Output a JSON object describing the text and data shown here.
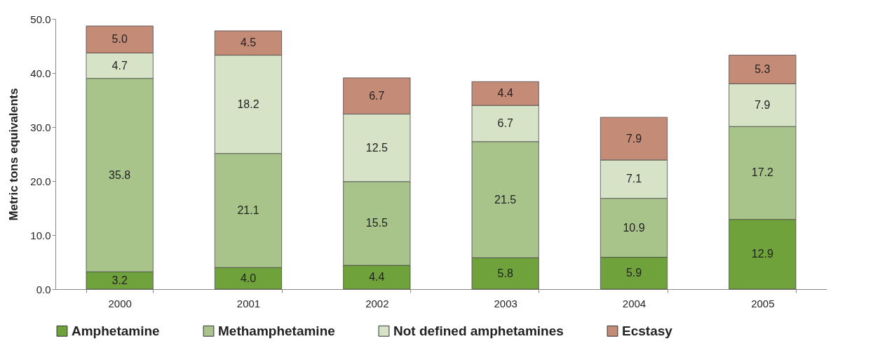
{
  "chart_data": {
    "type": "bar",
    "stacked": true,
    "ylabel": "Metric tons equivalents",
    "categories": [
      "2000",
      "2001",
      "2002",
      "2003",
      "2004",
      "2005"
    ],
    "ylim": [
      0,
      50
    ],
    "yticks": [
      {
        "value": 0,
        "label": "0.0"
      },
      {
        "value": 10,
        "label": "10.0"
      },
      {
        "value": 20,
        "label": "20.0"
      },
      {
        "value": 30,
        "label": "30.0"
      },
      {
        "value": 40,
        "label": "40.0"
      },
      {
        "value": 50,
        "label": "50.0"
      }
    ],
    "legend": "bottom",
    "series": [
      {
        "name": "Amphetamine",
        "color": "#6fa23a",
        "values": [
          3.2,
          4.0,
          4.4,
          5.8,
          5.9,
          12.9
        ],
        "value_labels": [
          "3.2",
          "4.0",
          "4.4",
          "5.8",
          "5.9",
          "12.9"
        ]
      },
      {
        "name": "Methamphetamine",
        "color": "#a9c48a",
        "values": [
          35.8,
          21.1,
          15.5,
          21.5,
          10.9,
          17.2
        ],
        "value_labels": [
          "35.8",
          "21.1",
          "15.5",
          "21.5",
          "10.9",
          "17.2"
        ]
      },
      {
        "name": "Not defined amphetamines",
        "color": "#d6e3c6",
        "values": [
          4.7,
          18.2,
          12.5,
          6.7,
          7.1,
          7.9
        ],
        "value_labels": [
          "4.7",
          "18.2",
          "12.5",
          "6.7",
          "7.1",
          "7.9"
        ]
      },
      {
        "name": "Ecstasy",
        "color": "#c48b76",
        "values": [
          5.0,
          4.5,
          6.7,
          4.4,
          7.9,
          5.3
        ],
        "value_labels": [
          "5.0",
          "4.5",
          "6.7",
          "4.4",
          "7.9",
          "5.3"
        ]
      }
    ]
  }
}
